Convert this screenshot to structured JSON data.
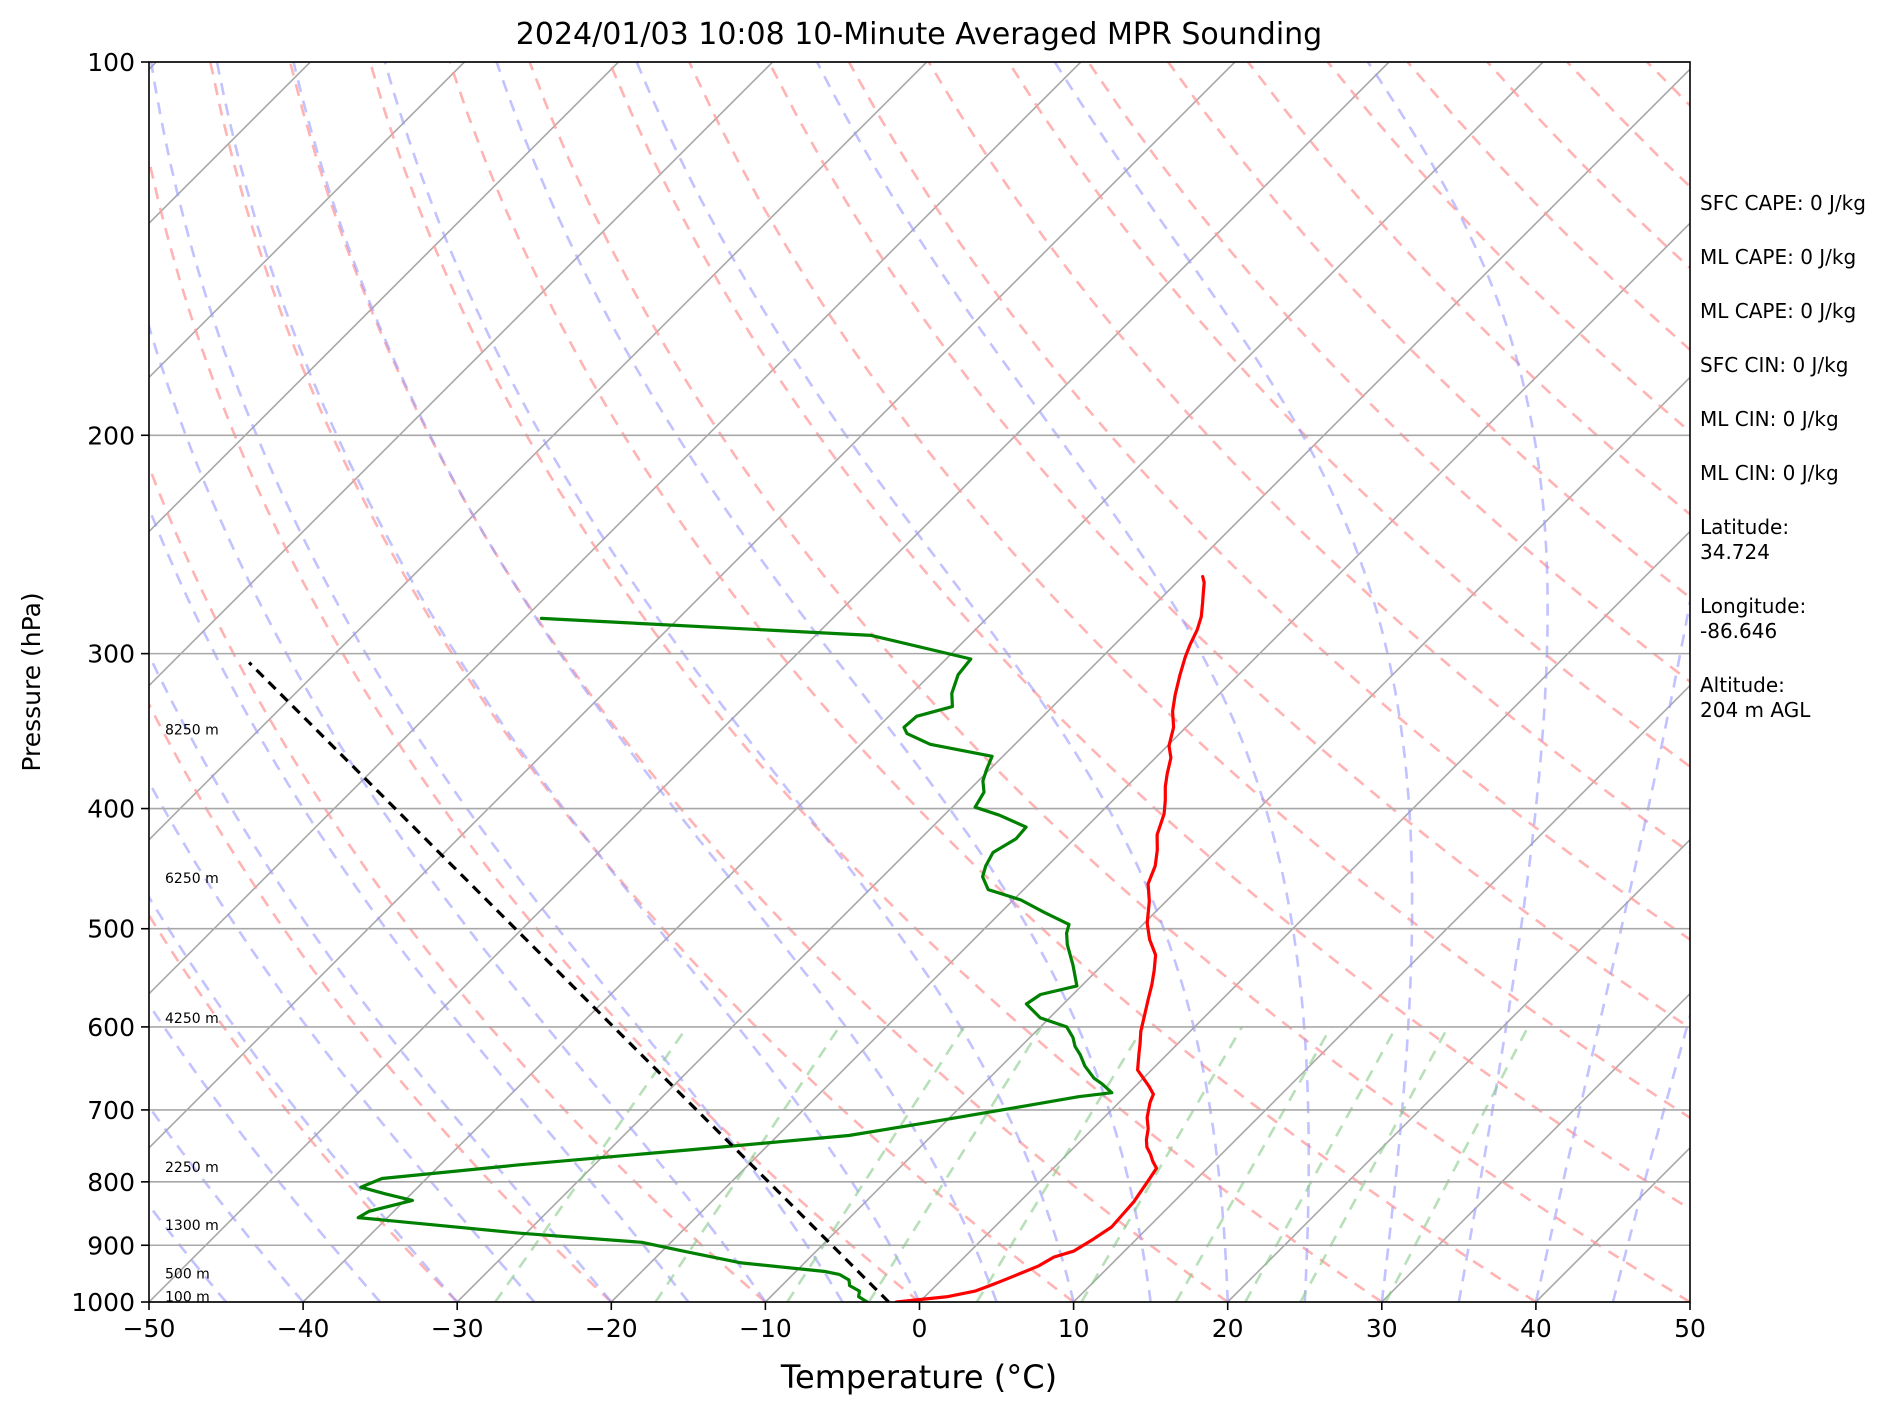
{
  "chart_data": {
    "type": "line",
    "title": "2024/01/03 10:08 10-Minute Averaged MPR Sounding",
    "xlabel": "Temperature (°C)",
    "ylabel": "Pressure (hPa)",
    "xlim": [
      -50,
      50
    ],
    "ylim": [
      1000,
      100
    ],
    "y_scale": "log",
    "x_ticks": [
      "−50",
      "−40",
      "−30",
      "−20",
      "−10",
      "0",
      "10",
      "20",
      "30",
      "40",
      "50"
    ],
    "y_ticks": [
      {
        "value": 100,
        "label": "100"
      },
      {
        "value": 200,
        "label": "200"
      },
      {
        "value": 300,
        "label": "300"
      },
      {
        "value": 400,
        "label": "400"
      },
      {
        "value": 500,
        "label": "500"
      },
      {
        "value": 600,
        "label": "600"
      },
      {
        "value": 700,
        "label": "700"
      },
      {
        "value": 800,
        "label": "800"
      },
      {
        "value": 900,
        "label": "900"
      },
      {
        "value": 1000,
        "label": "1000"
      }
    ],
    "grid": true,
    "background_lines": {
      "isotherms": "solid gray, skewed",
      "dry_adiabats": "dashed red",
      "moist_adiabats": "dashed blue",
      "mixing_ratio": "dashed green"
    },
    "series": [
      {
        "color": "#ff0000",
        "points": [
          [
            -1.5,
            1000
          ],
          [
            1.5,
            990
          ],
          [
            2.9,
            980
          ],
          [
            3.5,
            970
          ],
          [
            3.8,
            965
          ],
          [
            4.6,
            950
          ],
          [
            5.4,
            935
          ],
          [
            5.8,
            920
          ],
          [
            6.7,
            910
          ],
          [
            7.2,
            890
          ],
          [
            7.6,
            870
          ],
          [
            7.5,
            850
          ],
          [
            7.4,
            830
          ],
          [
            7.2,
            815
          ],
          [
            7.0,
            800
          ],
          [
            6.7,
            780
          ],
          [
            6.0,
            770
          ],
          [
            5.4,
            760
          ],
          [
            4.7,
            750
          ],
          [
            4.2,
            740
          ],
          [
            3.6,
            725
          ],
          [
            2.8,
            710
          ],
          [
            2.0,
            690
          ],
          [
            1.7,
            680
          ],
          [
            0.9,
            670
          ],
          [
            -0.9,
            650
          ],
          [
            -1.9,
            630
          ],
          [
            -2.4,
            620
          ],
          [
            -3.2,
            605
          ],
          [
            -4.1,
            585
          ],
          [
            -4.8,
            570
          ],
          [
            -5.5,
            555
          ],
          [
            -6.3,
            540
          ],
          [
            -7.2,
            525
          ],
          [
            -8.6,
            510
          ],
          [
            -9.8,
            495
          ],
          [
            -11.1,
            475
          ],
          [
            -12.3,
            460
          ],
          [
            -13.0,
            445
          ],
          [
            -13.9,
            432
          ],
          [
            -14.9,
            420
          ],
          [
            -15.8,
            404
          ],
          [
            -16.6,
            394
          ],
          [
            -17.5,
            384
          ],
          [
            -18.2,
            375
          ],
          [
            -19.0,
            364
          ],
          [
            -19.9,
            356
          ],
          [
            -20.8,
            344
          ],
          [
            -21.9,
            334
          ],
          [
            -22.8,
            324
          ],
          [
            -23.8,
            312
          ],
          [
            -24.6,
            302
          ],
          [
            -25.1,
            295
          ],
          [
            -25.6,
            287
          ],
          [
            -26.2,
            280
          ],
          [
            -27.0,
            273
          ],
          [
            -27.6,
            268
          ],
          [
            -28.2,
            263
          ],
          [
            -28.7,
            260
          ]
        ]
      },
      {
        "color": "#008000",
        "points": [
          [
            -3.4,
            1000
          ],
          [
            -4.3,
            990
          ],
          [
            -4.6,
            980
          ],
          [
            -5.6,
            970
          ],
          [
            -6.0,
            960
          ],
          [
            -7.0,
            950
          ],
          [
            -8.1,
            945
          ],
          [
            -14.1,
            930
          ],
          [
            -18.6,
            910
          ],
          [
            -21.9,
            895
          ],
          [
            -30.4,
            880
          ],
          [
            -41.9,
            855
          ],
          [
            -41.6,
            845
          ],
          [
            -39.5,
            828
          ],
          [
            -41.7,
            818
          ],
          [
            -43.7,
            808
          ],
          [
            -42.9,
            795
          ],
          [
            -34.8,
            775
          ],
          [
            -24.8,
            754
          ],
          [
            -15.4,
            734
          ],
          [
            -11.2,
            717
          ],
          [
            -5.9,
            695
          ],
          [
            -3.0,
            683
          ],
          [
            -1.1,
            678
          ],
          [
            -2.3,
            667
          ],
          [
            -3.2,
            660
          ],
          [
            -4.6,
            645
          ],
          [
            -5.6,
            632
          ],
          [
            -6.5,
            622
          ],
          [
            -7.2,
            612
          ],
          [
            -8.3,
            600
          ],
          [
            -10.6,
            590
          ],
          [
            -12.4,
            575
          ],
          [
            -12.1,
            565
          ],
          [
            -10.3,
            556
          ],
          [
            -10.9,
            548
          ],
          [
            -11.9,
            535
          ],
          [
            -13.6,
            515
          ],
          [
            -14.4,
            504
          ],
          [
            -14.8,
            496
          ],
          [
            -17.2,
            485
          ],
          [
            -19.5,
            474
          ],
          [
            -22.3,
            465
          ],
          [
            -23.5,
            454
          ],
          [
            -24.0,
            445
          ],
          [
            -24.4,
            434
          ],
          [
            -23.8,
            423
          ],
          [
            -23.9,
            414
          ],
          [
            -26.4,
            405
          ],
          [
            -28.5,
            399
          ],
          [
            -28.9,
            388
          ],
          [
            -29.7,
            380
          ],
          [
            -30.2,
            372
          ],
          [
            -30.7,
            363
          ],
          [
            -35.5,
            355
          ],
          [
            -37.7,
            348
          ],
          [
            -38.3,
            344
          ],
          [
            -38.2,
            337
          ],
          [
            -36.5,
            331
          ],
          [
            -37.4,
            323
          ],
          [
            -38.2,
            312
          ],
          [
            -38.4,
            303
          ],
          [
            -46.4,
            290
          ],
          [
            -68.9,
            281
          ]
        ]
      },
      {
        "color": "#000000",
        "dashed": true,
        "points": [
          [
            -2.0,
            1000
          ],
          [
            -85.0,
            305
          ]
        ]
      }
    ],
    "height_labels": [
      {
        "label": "100 m",
        "p": 992
      },
      {
        "label": "500 m",
        "p": 950
      },
      {
        "label": "1300 m",
        "p": 868
      },
      {
        "label": "2250 m",
        "p": 780
      },
      {
        "label": "4250 m",
        "p": 591
      },
      {
        "label": "6250 m",
        "p": 456
      },
      {
        "label": "8250 m",
        "p": 346
      }
    ],
    "annotations": [
      {
        "lines": [
          "SFC CAPE: 0 J/kg"
        ]
      },
      {
        "lines": [
          "ML CAPE: 0 J/kg"
        ]
      },
      {
        "lines": [
          "ML CAPE: 0 J/kg"
        ]
      },
      {
        "lines": [
          "SFC CIN: 0 J/kg"
        ]
      },
      {
        "lines": [
          "ML CIN: 0 J/kg"
        ]
      },
      {
        "lines": [
          "ML CIN: 0 J/kg"
        ]
      },
      {
        "lines": [
          "Latitude:",
          "34.724"
        ]
      },
      {
        "lines": [
          "Longitude:",
          "-86.646"
        ]
      },
      {
        "lines": [
          "Altitude:",
          "204 m AGL"
        ]
      }
    ]
  }
}
